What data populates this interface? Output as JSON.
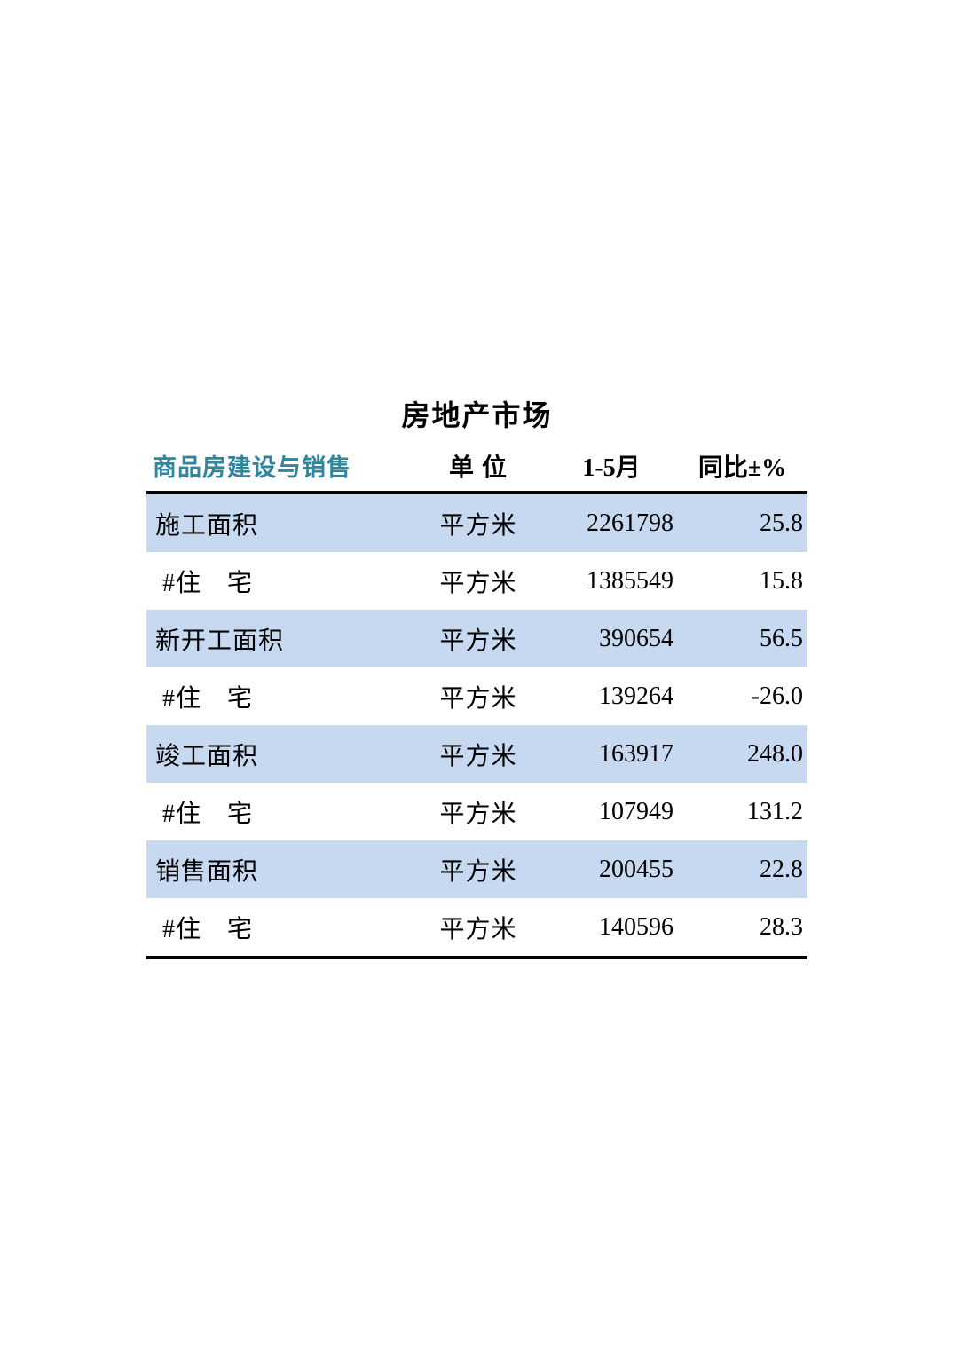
{
  "page": {
    "title": "房地产市场"
  },
  "table": {
    "columns": [
      "商品房建设与销售",
      "单 位",
      "1-5月",
      "同比±%"
    ],
    "rows": [
      {
        "label": "施工面积",
        "unit": "平方米",
        "value": "2261798",
        "yoy": "25.8"
      },
      {
        "label": "#住　宅",
        "unit": "平方米",
        "value": "1385549",
        "yoy": "15.8"
      },
      {
        "label": "新开工面积",
        "unit": "平方米",
        "value": "390654",
        "yoy": "56.5"
      },
      {
        "label": "#住　宅",
        "unit": "平方米",
        "value": "139264",
        "yoy": "-26.0"
      },
      {
        "label": "竣工面积",
        "unit": "平方米",
        "value": "163917",
        "yoy": "248.0"
      },
      {
        "label": "#住　宅",
        "unit": "平方米",
        "value": "107949",
        "yoy": "131.2"
      },
      {
        "label": "销售面积",
        "unit": "平方米",
        "value": "200455",
        "yoy": "22.8"
      },
      {
        "label": "#住　宅",
        "unit": "平方米",
        "value": "140596",
        "yoy": "28.3"
      }
    ]
  },
  "colors": {
    "section_header_teal": "#31859c",
    "row_highlight_blue": "#c6d9f1",
    "rule_black": "#000000"
  }
}
